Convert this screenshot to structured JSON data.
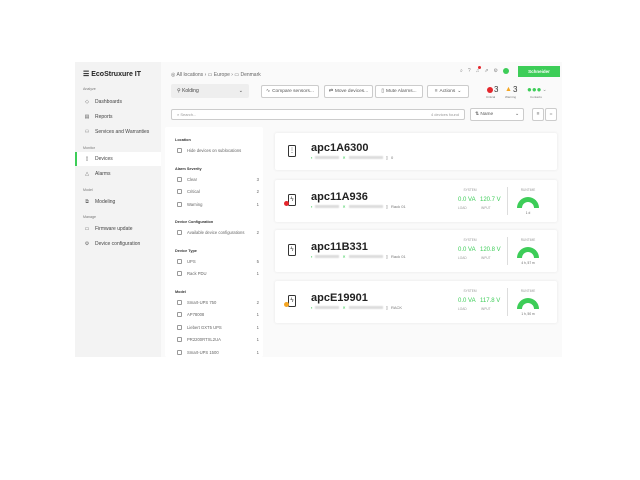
{
  "brand": {
    "name": "EcoStruxure IT",
    "partner": "Schneider Electric"
  },
  "sidebar": {
    "sections": [
      {
        "label": "Analyze",
        "items": [
          {
            "label": "Dashboards",
            "icon": "dashboard-icon"
          },
          {
            "label": "Reports",
            "icon": "report-icon"
          },
          {
            "label": "Services and Warranties",
            "icon": "services-icon"
          }
        ]
      },
      {
        "label": "Monitor",
        "items": [
          {
            "label": "Devices",
            "icon": "device-icon",
            "active": true
          },
          {
            "label": "Alarms",
            "icon": "alarm-icon"
          }
        ]
      },
      {
        "label": "Model",
        "items": [
          {
            "label": "Modeling",
            "icon": "modeling-icon"
          }
        ]
      },
      {
        "label": "Manage",
        "items": [
          {
            "label": "Firmware update",
            "icon": "firmware-icon"
          },
          {
            "label": "Device configuration",
            "icon": "config-icon"
          }
        ]
      }
    ]
  },
  "breadcrumb": [
    "All locations",
    "Europe",
    "Denmark"
  ],
  "location": "Kolding",
  "toolbar": {
    "compare": "Compare sensors...",
    "move": "Move devices...",
    "mute": "Mute Alarms...",
    "actions": "Actions"
  },
  "status": {
    "critical": "3",
    "critical_label": "Critical",
    "warning": "3",
    "warning_label": "Warning",
    "contacts_label": "Contacts"
  },
  "search": {
    "placeholder": "Search...",
    "found": "4 devices found"
  },
  "sort": "Name",
  "filters": {
    "location": {
      "title": "Location",
      "options": [
        {
          "label": "Hide devices on sublocations"
        }
      ]
    },
    "severity": {
      "title": "Alarm Severity",
      "options": [
        {
          "label": "Clear",
          "count": "3"
        },
        {
          "label": "Critical",
          "count": "2"
        },
        {
          "label": "Warning",
          "count": "1"
        }
      ]
    },
    "config": {
      "title": "Device Configuration",
      "options": [
        {
          "label": "Available device configurations",
          "count": "2"
        }
      ]
    },
    "type": {
      "title": "Device Type",
      "options": [
        {
          "label": "UPS",
          "count": "5"
        },
        {
          "label": "Rack PDU",
          "count": "1"
        }
      ]
    },
    "model": {
      "title": "Model",
      "options": [
        {
          "label": "Smart-UPS 750",
          "count": "2"
        },
        {
          "label": "AP78008",
          "count": "1"
        },
        {
          "label": "Liebert GXT5 UPS",
          "count": "1"
        },
        {
          "label": "PR2200RTXL2UA",
          "count": "1"
        },
        {
          "label": "Smart-UPS 1500",
          "count": "1"
        }
      ]
    }
  },
  "devices": [
    {
      "name": "apc1A6300",
      "rack": "0",
      "alarm": ""
    },
    {
      "name": "apc11A936",
      "rack": "Rack 01",
      "alarm": "critical",
      "load": "0.0 VA",
      "input": "120.7 V",
      "runtime": "1 d"
    },
    {
      "name": "apc11B331",
      "rack": "Rack 01",
      "alarm": "",
      "load": "0.0 VA",
      "input": "120.8 V",
      "runtime": "4 h, 57 m"
    },
    {
      "name": "apcE19901",
      "rack": "RACK",
      "alarm": "warning",
      "load": "0.0 VA",
      "input": "117.8 V",
      "runtime": "1 h, 50 m"
    }
  ],
  "labels": {
    "system": "SYSTEM",
    "runtime": "RUNTIME",
    "load": "LOAD",
    "input": "INPUT"
  },
  "colors": {
    "accent": "#3dcd58",
    "critical": "#e4262c",
    "warning": "#f5a623"
  }
}
